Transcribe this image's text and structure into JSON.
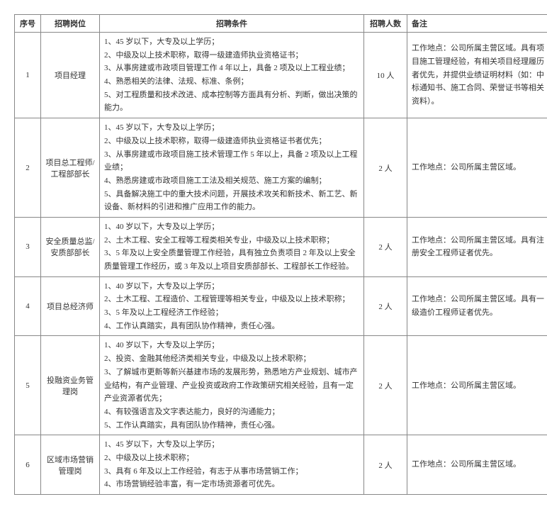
{
  "headers": {
    "idx": "序号",
    "pos": "招聘岗位",
    "cond": "招聘条件",
    "num": "招聘人数",
    "note": "备注"
  },
  "rows": [
    {
      "idx": "1",
      "pos": "项目经理",
      "cond": [
        "1、45 岁以下，大专及以上学历；",
        "2、中级及以上技术职称，取得一级建造师执业资格证书；",
        "3、从事房建或市政项目管理工作 4 年以上，具备 2 项及以上工程业绩；",
        "4、熟悉相关的法律、法规、标准、条例；",
        "5、对工程质量和技术改进、成本控制等方面具有分析、判断，做出决策的能力。"
      ],
      "num": "10 人",
      "note": "工作地点：公司所属主营区域。具有项目施工管理经验，有相关项目经理履历者优先，并提供业绩证明材料（如：中标通知书、施工合同、荣誉证书等相关资料）。"
    },
    {
      "idx": "2",
      "pos": "项目总工程师/工程部部长",
      "cond": [
        "1、45 岁以下，大专及以上学历；",
        "2、中级及以上技术职称，取得一级建造师执业资格证书者优先；",
        "3、从事房建或市政项目施工技术管理工作 5 年以上，具备 2 项及以上工程业绩；",
        "4、熟悉房建或市政项目施工工法及相关规范、施工方案的编制；",
        "5、具备解决施工中的重大技术问题，开展技术攻关和新技术、新工艺、新设备、新材料的引进和推广应用工作的能力。"
      ],
      "num": "2 人",
      "note": "工作地点：公司所属主营区域。"
    },
    {
      "idx": "3",
      "pos": "安全质量总监/安质部部长",
      "cond": [
        "1、40 岁以下，大专及以上学历；",
        "2、土木工程、安全工程等工程类相关专业，中级及以上技术职称；",
        "3、5 年及以上安全质量管理工作经验，具有独立负责项目 2 年及以上安全质量管理工作经历，或 3 年及以上项目安质部部长、工程部长工作经验。"
      ],
      "num": "2 人",
      "note": "工作地点：公司所属主营区域。具有注册安全工程师证者优先。"
    },
    {
      "idx": "4",
      "pos": "项目总经济师",
      "cond": [
        "1、40 岁以下，大专及以上学历；",
        "2、土木工程、工程造价、工程管理等相关专业，中级及以上技术职称；",
        "3、5 年及以上工程经济工作经验；",
        "4、工作认真踏实，具有团队协作精神，责任心强。"
      ],
      "num": "2 人",
      "note": "工作地点：公司所属主营区域。具有一级造价工程师证者优先。"
    },
    {
      "idx": "5",
      "pos": "投融资业务管理岗",
      "cond": [
        "1、40 岁以下，大专及以上学历；",
        "2、投资、金融其他经济类相关专业，中级及以上技术职称；",
        "3、了解城市更新等新兴基建市场的发展形势，熟悉地方产业规划、城市产业结构，有产业管理、产业投资或政府工作政策研究相关经验，且有一定产业资源者优先；",
        "4、有较强语言及文字表达能力，良好的沟通能力；",
        "5、工作认真踏实，具有团队协作精神，责任心强。"
      ],
      "num": "2 人",
      "note": "工作地点：公司所属主营区域。"
    },
    {
      "idx": "6",
      "pos": "区域市场营销管理岗",
      "cond": [
        "1、45 岁以下，大专及以上学历；",
        "2、中级及以上技术职称；",
        "3、具有 6 年及以上工作经验，有志于从事市场营销工作；",
        "4、市场营销经验丰富，有一定市场资源者可优先。"
      ],
      "num": "2 人",
      "note": "工作地点：公司所属主营区域。"
    }
  ],
  "colors": {
    "border": "#888888",
    "text": "#333333",
    "background": "#ffffff"
  },
  "font": {
    "family": "SimSun",
    "size_body": 11,
    "size_header": 11
  }
}
